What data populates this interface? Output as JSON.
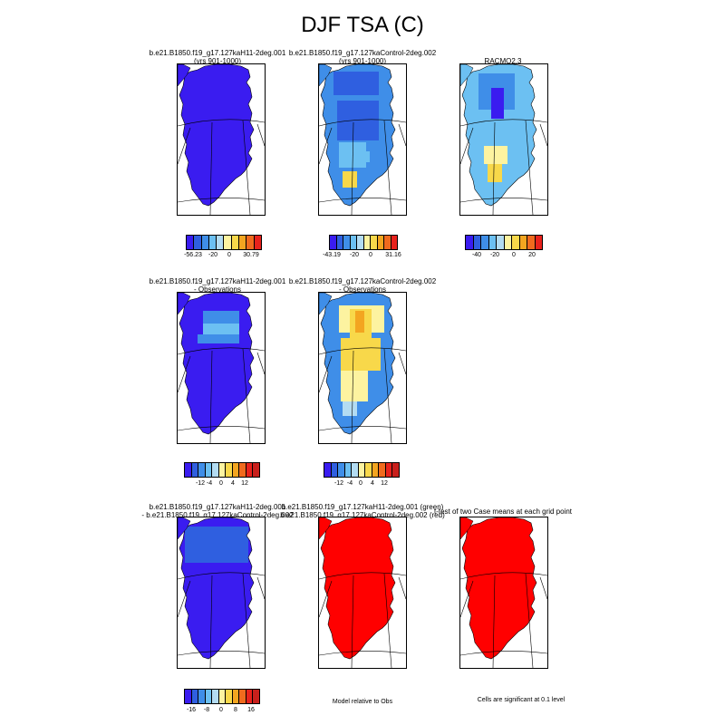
{
  "title": "DJF TSA (C)",
  "colors": {
    "c_blue_dark": "#3a1cf0",
    "c_blue": "#2f5fe0",
    "c_blue_mid": "#3f8ee8",
    "c_blue_light": "#6cc0f2",
    "c_blue_pale": "#b3dcf2",
    "c_yellow_pale": "#fdf3a0",
    "c_yellow": "#f8d84a",
    "c_orange": "#f3a520",
    "c_orange_red": "#f06a1e",
    "c_red": "#e8221c",
    "c_red_dark": "#c8201c",
    "sig_red": "#ff0000"
  },
  "row1": {
    "p1": {
      "title_line1": "b.e21.B1850.f19_g17.127kaH11-2deg.001",
      "title_line2": "(yrs 901-1000)"
    },
    "p2": {
      "title_line1": "b.e21.B1850.f19_g17.127kaControl-2deg.002",
      "title_line2": "(yrs 901-1000)"
    },
    "p3": {
      "title_line1": "RACMO2.3"
    },
    "cb1": [
      "-56.23",
      "-20",
      "0",
      "30.79"
    ],
    "cb2": [
      "-43.19",
      "-20",
      "0",
      "31.16"
    ],
    "cb3": [
      "-40",
      "-20",
      "0",
      "20"
    ]
  },
  "row2": {
    "p1": {
      "title_line1": "b.e21.B1850.f19_g17.127kaH11-2deg.001",
      "title_line2": "- Observations"
    },
    "p2": {
      "title_line1": "b.e21.B1850.f19_g17.127kaControl-2deg.002",
      "title_line2": "- Observations"
    },
    "cb": [
      "-12",
      "-4",
      "0",
      "4",
      "12"
    ]
  },
  "row3": {
    "p1": {
      "title_line1": "b.e21.B1850.f19_g17.127kaH11-2deg.001",
      "title_line2": "- b.e21.B1850.f19_g17.127kaControl-2deg.002"
    },
    "p2": {
      "title_line1": "b.e21.B1850.f19_g17.127kaH11-2deg.001 (green)",
      "title_line2": "b.e21.B1850.f19_g17.127kaControl-2deg.002 (red)"
    },
    "p3": {
      "title_line1": "t-test of two Case means at each grid point"
    },
    "cb": [
      "-16",
      "-8",
      "0",
      "8",
      "16"
    ],
    "note_mid": "Model relative to Obs",
    "note_right": "Cells are significant at 0.1 level"
  }
}
